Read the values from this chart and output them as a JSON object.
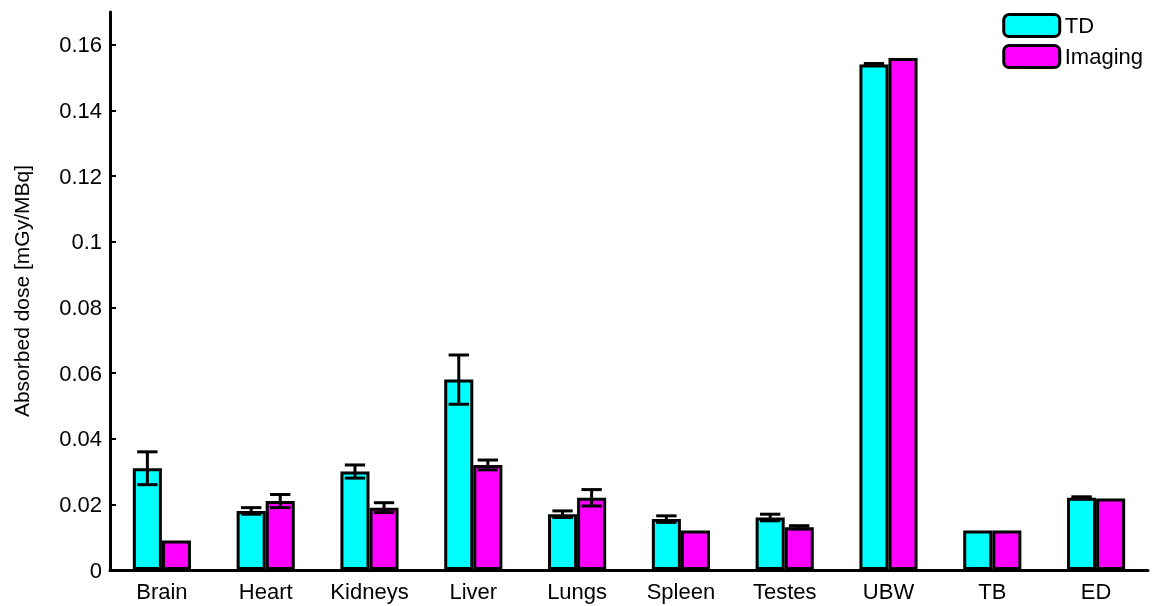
{
  "chart_data": {
    "type": "bar",
    "ylabel": "Absorbed dose [mGy/MBq]",
    "categories": [
      "Brain",
      "Heart",
      "Kidneys",
      "Liver",
      "Lungs",
      "Spleen",
      "Testes",
      "UBW",
      "TB",
      "ED"
    ],
    "series": [
      {
        "name": "TD",
        "color": "#00ffff",
        "values": [
          0.031,
          0.018,
          0.03,
          0.058,
          0.017,
          0.0155,
          0.016,
          0.154,
          0.012,
          0.022
        ],
        "errors": [
          0.005,
          0.001,
          0.002,
          0.0075,
          0.001,
          0.001,
          0.001,
          0.0003,
          null,
          0.0003
        ]
      },
      {
        "name": "Imaging",
        "color": "#ff00ff",
        "values": [
          0.009,
          0.021,
          0.019,
          0.032,
          0.022,
          0.012,
          0.013,
          0.156,
          0.012,
          0.0218
        ],
        "errors": [
          null,
          0.002,
          0.0015,
          0.0015,
          0.0025,
          null,
          0.0005,
          null,
          null,
          null
        ]
      }
    ],
    "ylim": [
      0,
      0.17
    ],
    "yticks": [
      0,
      0.02,
      0.04,
      0.06,
      0.08,
      0.1,
      0.12,
      0.14,
      0.16
    ],
    "grid": false,
    "legend": "top right"
  }
}
